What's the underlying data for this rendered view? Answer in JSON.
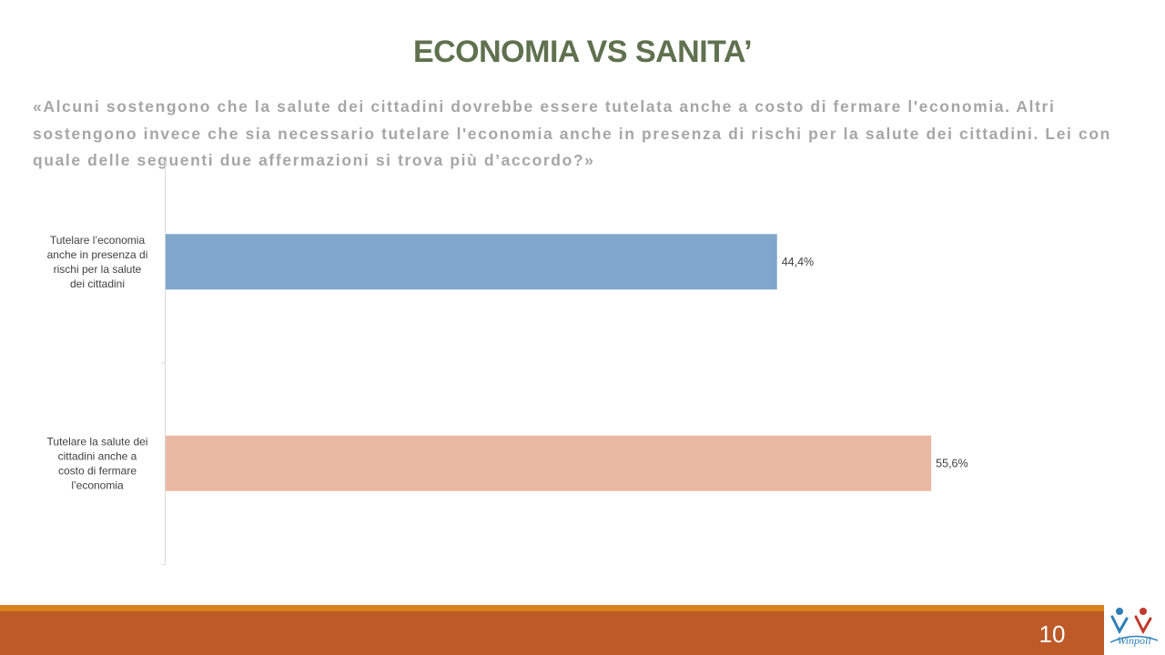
{
  "title": "ECONOMIA VS SANITA’",
  "question": "«Alcuni sostengono che la salute dei cittadini dovrebbe essere tutelata anche a costo di fermare l'economia. Altri sostengono invece che sia necessario tutelare l'economia anche in presenza di rischi per la salute dei cittadini. Lei con quale delle seguenti due affermazioni si trova più d’accordo?»",
  "page_number": "10",
  "logo_text": "Winpoll",
  "chart_data": {
    "type": "bar",
    "orientation": "horizontal",
    "categories": [
      [
        "Tutelare l’economia",
        "anche in presenza di",
        "rischi per la salute",
        "dei cittadini"
      ],
      [
        "Tutelare la salute dei",
        "cittadini anche a",
        "costo di fermare",
        "l’economia"
      ]
    ],
    "values": [
      44.4,
      55.6
    ],
    "value_labels": [
      "44,4%",
      "55,6%"
    ],
    "colors": [
      "#7fa7cb",
      "#eab9a3"
    ],
    "xlim": [
      0,
      62
    ],
    "grid": false,
    "legend": "none"
  }
}
